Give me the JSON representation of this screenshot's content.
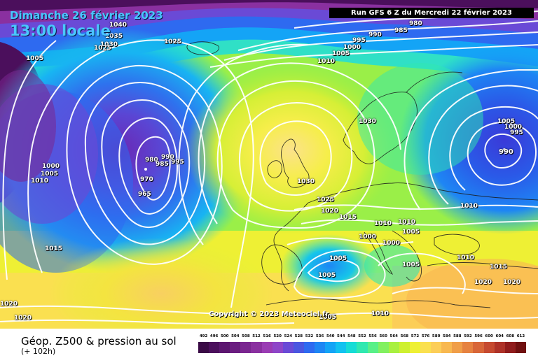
{
  "header": {
    "date": "Dimanche 26 février 2023",
    "time": "13:00 locale",
    "run": "Run GFS 6 Z du Mercredi 22 février 2023"
  },
  "copyright": "Copyright © 2023 Meteociel.fr",
  "legend": {
    "title": "Géop. Z500 & pression au sol",
    "subtitle": "(+ 102h)",
    "scale_values": [
      "492",
      "496",
      "500",
      "504",
      "508",
      "512",
      "516",
      "520",
      "524",
      "528",
      "532",
      "536",
      "540",
      "544",
      "548",
      "552",
      "556",
      "560",
      "564",
      "568",
      "572",
      "576",
      "580",
      "584",
      "588",
      "592",
      "596",
      "600",
      "604",
      "608",
      "612"
    ],
    "scale_colors": [
      "#3a0a46",
      "#4b0f5c",
      "#5c1670",
      "#6a1d80",
      "#7a2690",
      "#8a30a0",
      "#9a3cb4",
      "#8e46c8",
      "#6a4ad6",
      "#4a56e0",
      "#2e6af0",
      "#1e86f4",
      "#14a4f6",
      "#12c2f0",
      "#16dcd6",
      "#30e8b0",
      "#58f088",
      "#82f060",
      "#a8f040",
      "#cef030",
      "#eef034",
      "#fae050",
      "#fcce58",
      "#f8b850",
      "#f09e48",
      "#e68240",
      "#d86638",
      "#c64a30",
      "#ae3228",
      "#901c1c",
      "#701010"
    ]
  },
  "isobars": [
    {
      "text": "990",
      "kind": "center-low"
    },
    {
      "text": "1040",
      "kind": "contour"
    },
    {
      "text": "1035",
      "kind": "contour"
    },
    {
      "text": "1030",
      "kind": "contour"
    },
    {
      "text": "1025",
      "kind": "contour"
    },
    {
      "text": "1025",
      "kind": "contour"
    },
    {
      "text": "1005",
      "kind": "contour"
    },
    {
      "text": "995",
      "kind": "contour"
    },
    {
      "text": "990",
      "kind": "contour"
    },
    {
      "text": "985",
      "kind": "contour"
    },
    {
      "text": "980",
      "kind": "contour"
    },
    {
      "text": "1000",
      "kind": "contour"
    },
    {
      "text": "1005",
      "kind": "contour"
    },
    {
      "text": "1010",
      "kind": "contour"
    },
    {
      "text": "1030",
      "kind": "contour"
    },
    {
      "text": "1030",
      "kind": "contour"
    },
    {
      "text": "1025",
      "kind": "contour"
    },
    {
      "text": "1020",
      "kind": "contour"
    },
    {
      "text": "1015",
      "kind": "contour"
    },
    {
      "text": "1000",
      "kind": "contour"
    },
    {
      "text": "1005",
      "kind": "contour"
    },
    {
      "text": "1010",
      "kind": "contour"
    },
    {
      "text": "980",
      "kind": "contour"
    },
    {
      "text": "985",
      "kind": "contour"
    },
    {
      "text": "990",
      "kind": "contour"
    },
    {
      "text": "995",
      "kind": "contour"
    },
    {
      "text": "970",
      "kind": "contour"
    },
    {
      "text": "965",
      "kind": "contour"
    },
    {
      "text": "1015",
      "kind": "contour"
    },
    {
      "text": "1020",
      "kind": "contour"
    },
    {
      "text": "1020",
      "kind": "contour"
    },
    {
      "text": "1005",
      "kind": "contour"
    },
    {
      "text": "1000",
      "kind": "contour"
    },
    {
      "text": "995",
      "kind": "contour"
    },
    {
      "text": "990",
      "kind": "center-low"
    },
    {
      "text": "1010",
      "kind": "contour"
    },
    {
      "text": "1010",
      "kind": "contour"
    },
    {
      "text": "1000",
      "kind": "contour"
    },
    {
      "text": "1005",
      "kind": "contour"
    },
    {
      "text": "1000",
      "kind": "contour"
    },
    {
      "text": "1005",
      "kind": "contour"
    },
    {
      "text": "1005",
      "kind": "contour"
    },
    {
      "text": "1005",
      "kind": "contour"
    },
    {
      "text": "1010",
      "kind": "contour"
    },
    {
      "text": "1010",
      "kind": "contour"
    },
    {
      "text": "1015",
      "kind": "contour"
    },
    {
      "text": "1020",
      "kind": "contour"
    },
    {
      "text": "1020",
      "kind": "contour"
    },
    {
      "text": "1005",
      "kind": "contour"
    },
    {
      "text": "1010",
      "kind": "contour"
    }
  ]
}
